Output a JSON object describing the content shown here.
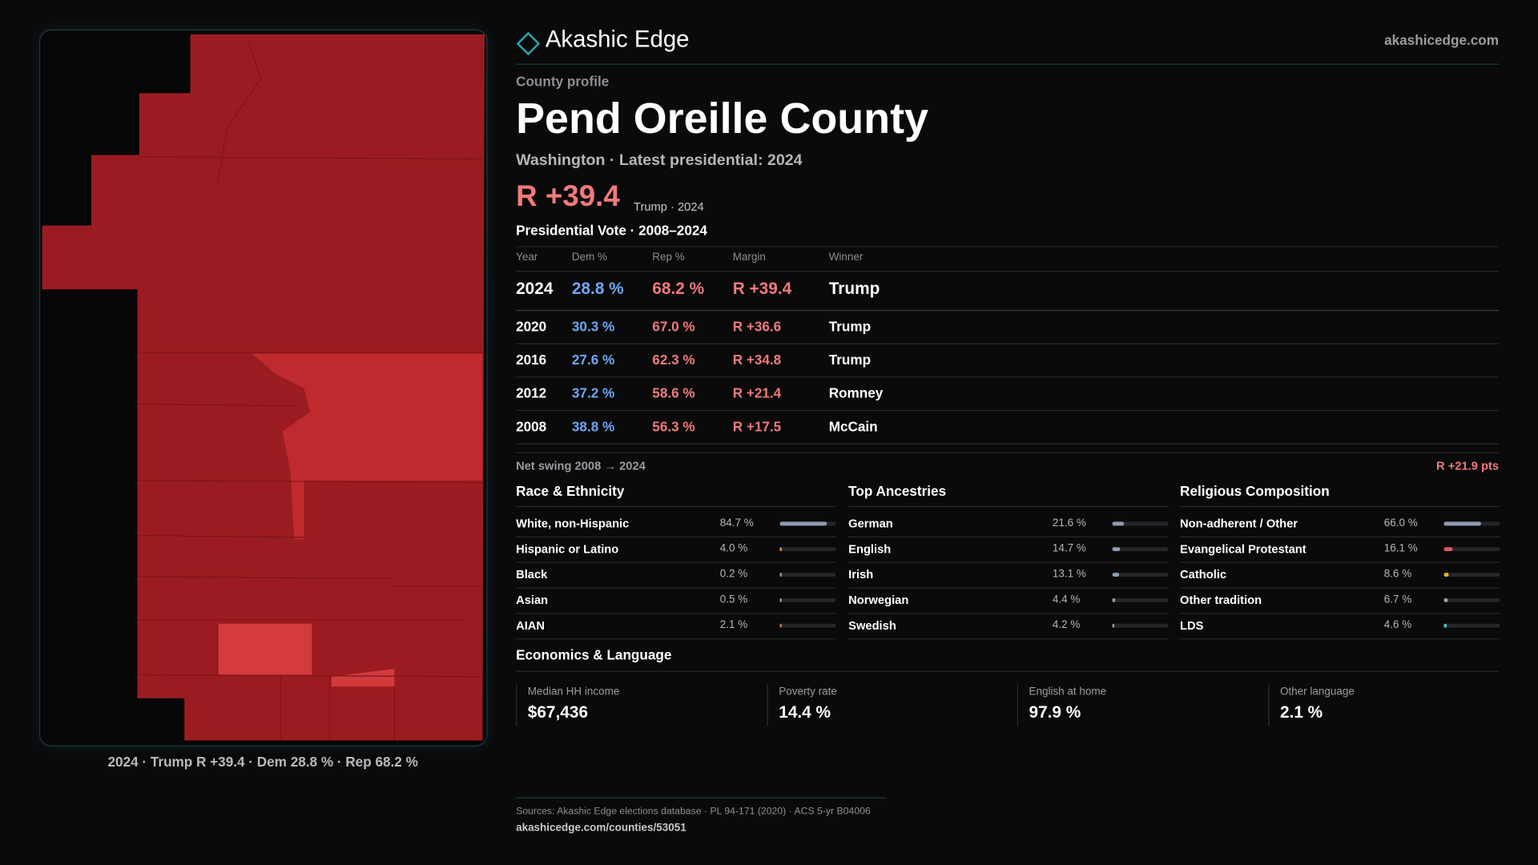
{
  "header": {
    "brand": "Akashic Edge",
    "site": "akashicedge.com"
  },
  "profile": {
    "eyebrow": "County profile",
    "title": "Pend Oreille County",
    "subtitle": "Washington · Latest presidential: 2024",
    "margin": "R +39.4",
    "margin_note": "Trump · 2024"
  },
  "map": {
    "caption": "2024 · Trump R +39.4 · Dem 28.8 % · Rep 68.2 %"
  },
  "vote_table": {
    "title": "Presidential Vote · 2008–2024",
    "columns": [
      "Year",
      "Dem %",
      "Rep %",
      "Margin",
      "Winner"
    ],
    "rows": [
      [
        "2024",
        "28.8 %",
        "68.2 %",
        "R +39.4",
        "Trump"
      ],
      [
        "2020",
        "30.3 %",
        "67.0 %",
        "R +36.6",
        "Trump"
      ],
      [
        "2016",
        "27.6 %",
        "62.3 %",
        "R +34.8",
        "Trump"
      ],
      [
        "2012",
        "37.2 %",
        "58.6 %",
        "R +21.4",
        "Romney"
      ],
      [
        "2008",
        "38.8 %",
        "56.3 %",
        "R +17.5",
        "McCain"
      ]
    ]
  },
  "swing": {
    "label": "Net swing 2008 → 2024",
    "value": "R +21.9 pts"
  },
  "race": {
    "title": "Race & Ethnicity",
    "rows": [
      {
        "label": "White, non-Hispanic",
        "value": 84.7,
        "value_label": "84.7 %",
        "color": "#8e9bb0"
      },
      {
        "label": "Hispanic or Latino",
        "value": 4.0,
        "value_label": "4.0 %",
        "color": "#e8973a"
      },
      {
        "label": "Black",
        "value": 0.2,
        "value_label": "0.2 %",
        "color": "#8e9bb0"
      },
      {
        "label": "Asian",
        "value": 0.5,
        "value_label": "0.5 %",
        "color": "#8e9bb0"
      },
      {
        "label": "AIAN",
        "value": 2.1,
        "value_label": "2.1 %",
        "color": "#c77a3a"
      }
    ]
  },
  "ancestry": {
    "title": "Top Ancestries",
    "rows": [
      {
        "label": "German",
        "value": 21.6,
        "value_label": "21.6 %",
        "color": "#8e9bb0"
      },
      {
        "label": "English",
        "value": 14.7,
        "value_label": "14.7 %",
        "color": "#8e9bb0"
      },
      {
        "label": "Irish",
        "value": 13.1,
        "value_label": "13.1 %",
        "color": "#8e9bb0"
      },
      {
        "label": "Norwegian",
        "value": 4.4,
        "value_label": "4.4 %",
        "color": "#8e9bb0"
      },
      {
        "label": "Swedish",
        "value": 4.2,
        "value_label": "4.2 %",
        "color": "#8e9bb0"
      }
    ]
  },
  "religion": {
    "title": "Religious Composition",
    "rows": [
      {
        "label": "Non-adherent / Other",
        "value": 66.0,
        "value_label": "66.0 %",
        "color": "#8e9bb0"
      },
      {
        "label": "Evangelical Protestant",
        "value": 16.1,
        "value_label": "16.1 %",
        "color": "#e0575c"
      },
      {
        "label": "Catholic",
        "value": 8.6,
        "value_label": "8.6 %",
        "color": "#e8b23a"
      },
      {
        "label": "Other tradition",
        "value": 6.7,
        "value_label": "6.7 %",
        "color": "#a0a7b3"
      },
      {
        "label": "LDS",
        "value": 4.6,
        "value_label": "4.6 %",
        "color": "#3fc1c9"
      }
    ]
  },
  "economics": {
    "title": "Economics & Language",
    "items": [
      {
        "label": "Median HH income",
        "value": "$67,436"
      },
      {
        "label": "Poverty rate",
        "value": "14.4 %"
      },
      {
        "label": "English at home",
        "value": "97.9 %"
      },
      {
        "label": "Other language",
        "value": "2.1 %"
      }
    ]
  },
  "footer": {
    "sources": "Sources: Akashic Edge elections database · PL 94-171 (2020) · ACS 5-yr B04006",
    "url": "akashicedge.com/counties/53051"
  }
}
